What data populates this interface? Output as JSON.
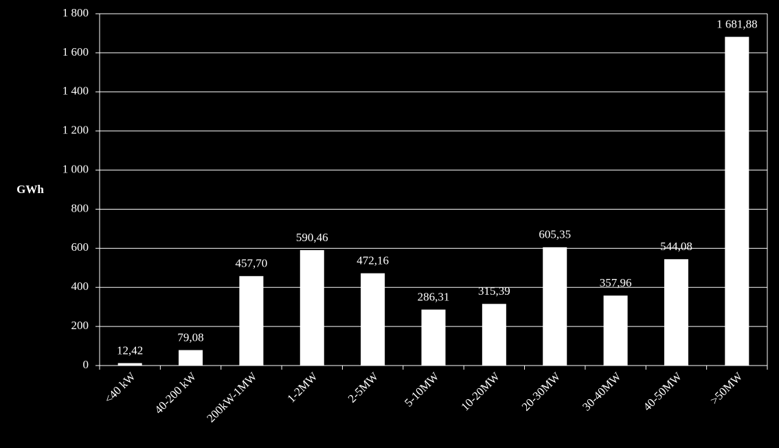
{
  "chart_data": {
    "type": "bar",
    "y_label": "GWh",
    "categories": [
      "<40 kW",
      "40-200 kW",
      "200kW-1MW",
      "1-2MW",
      "2-5MW",
      "5-10MW",
      "10-20MW",
      "20-30MW",
      "30-40MW",
      "40-50MW",
      ">50MW"
    ],
    "values": [
      12.42,
      79.08,
      457.7,
      590.46,
      472.16,
      286.31,
      315.39,
      605.35,
      357.96,
      544.08,
      1681.88
    ],
    "value_labels": [
      "12,42",
      "79,08",
      "457,70",
      "590,46",
      "472,16",
      "286,31",
      "315,39",
      "605,35",
      "357,96",
      "544,08",
      "1 681,88"
    ],
    "color": "#ffffff",
    "ylim": [
      0,
      1800
    ],
    "yticks": [
      0,
      200,
      400,
      600,
      800,
      {
        "value": 1000,
        "label": "1 000"
      },
      {
        "value": 1200,
        "label": "1 200"
      },
      {
        "value": 1400,
        "label": "1 400"
      },
      {
        "value": 1600,
        "label": "1 600"
      },
      {
        "value": 1800,
        "label": "1 800"
      }
    ],
    "grid": true
  }
}
